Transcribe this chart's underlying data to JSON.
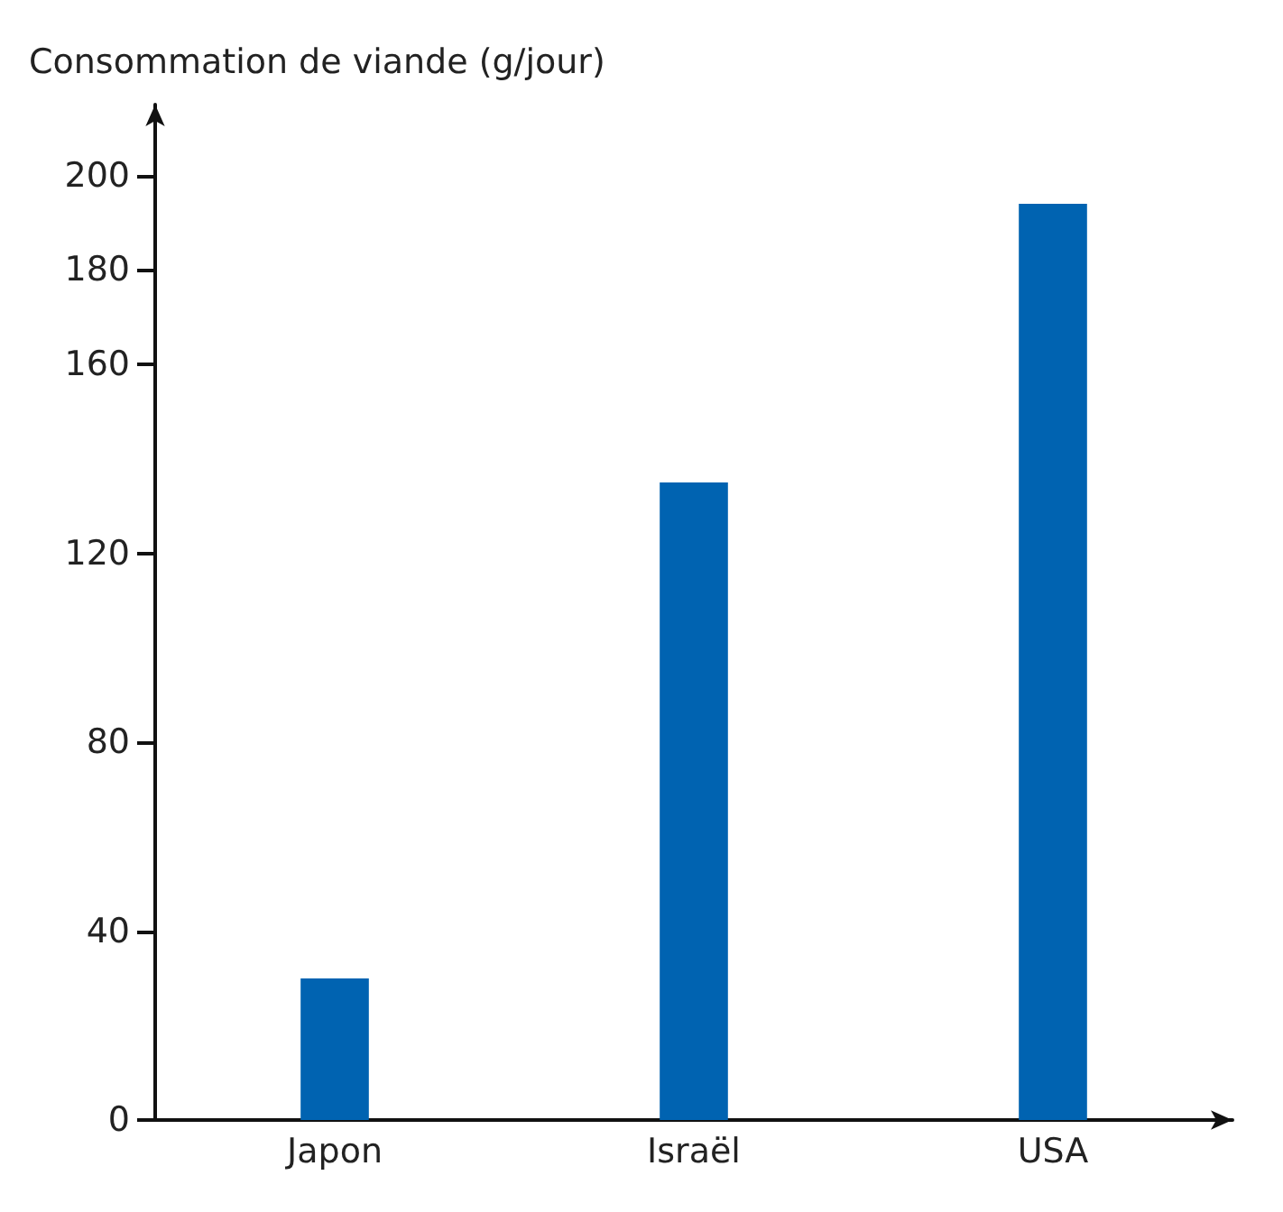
{
  "chart_data": {
    "type": "bar",
    "ylabel": "Consommation de viande (g/jour)",
    "categories": [
      "Japon",
      "Israël",
      "USA"
    ],
    "values": [
      30,
      135,
      194
    ],
    "color": "#0063b1",
    "ylim": [
      0,
      215
    ],
    "yticks": [
      0,
      40,
      80,
      120,
      160,
      180,
      200
    ],
    "grid": false
  }
}
